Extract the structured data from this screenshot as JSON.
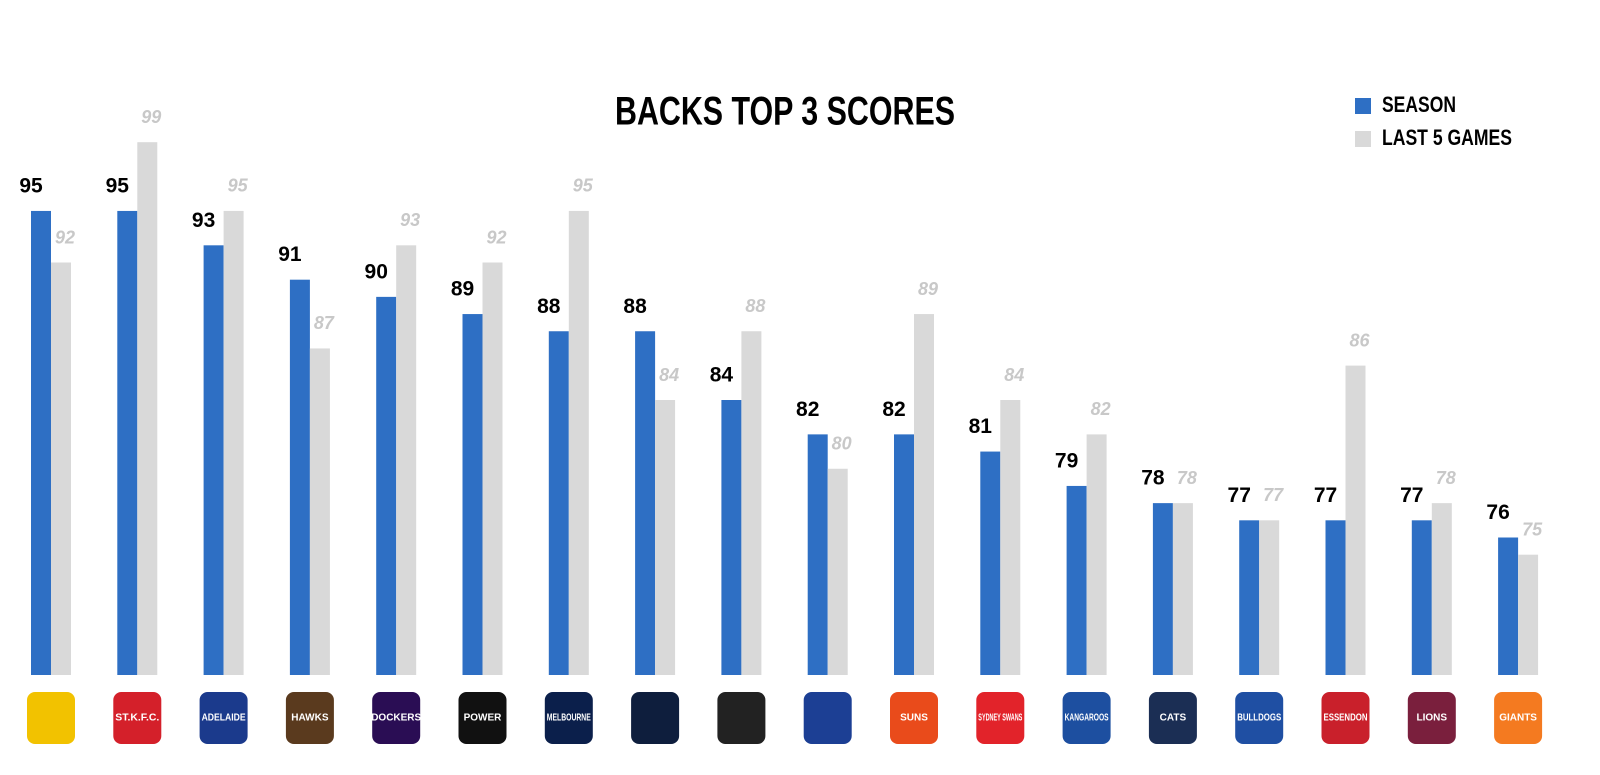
{
  "chart_data": {
    "type": "bar",
    "title": "BACKS TOP 3 SCORES",
    "categories": [
      null,
      "ST.K.F.C.",
      "ADELAIDE",
      "HAWKS",
      "DOCKERS",
      "POWER",
      "MELBOURNE",
      null,
      null,
      null,
      "SUNS",
      "SYDNEY SWANS",
      "KANGAROOS",
      "CATS",
      "BULLDOGS",
      "ESSENDON",
      "LIONS",
      "GIANTS"
    ],
    "series": [
      {
        "name": "SEASON",
        "color": "#2e6fc4",
        "values": [
          95,
          95,
          93,
          91,
          90,
          89,
          88,
          88,
          84,
          82,
          82,
          81,
          79,
          78,
          77,
          77,
          77,
          76
        ]
      },
      {
        "name": "LAST 5 GAMES",
        "color": "#d9d9d9",
        "values": [
          92,
          99,
          95,
          87,
          93,
          92,
          95,
          84,
          88,
          80,
          89,
          84,
          82,
          78,
          77,
          86,
          78,
          75
        ]
      }
    ],
    "ylim": [
      68,
      100
    ],
    "legend": "top-right"
  }
}
